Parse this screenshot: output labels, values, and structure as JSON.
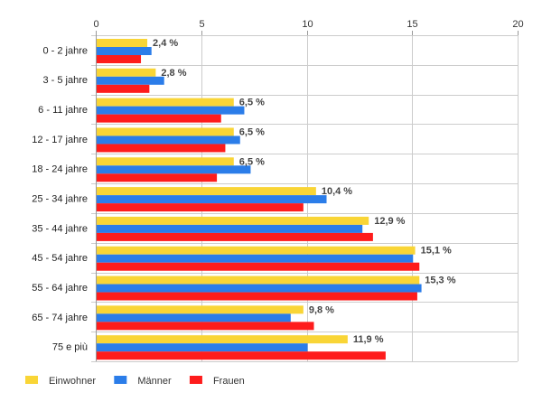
{
  "chart_data": {
    "type": "bar",
    "orientation": "horizontal",
    "title": "",
    "xlabel": "",
    "ylabel": "",
    "xlim": [
      0,
      20
    ],
    "x_ticks": [
      "0",
      "5",
      "10",
      "15",
      "20"
    ],
    "grid": true,
    "legend_position": "bottom-left",
    "categories": [
      "0 - 2 jahre",
      "3 - 5 jahre",
      "6 - 11 jahre",
      "12 - 17 jahre",
      "18 - 24 jahre",
      "25 - 34 jahre",
      "35 - 44 jahre",
      "45 - 54 jahre",
      "55 - 64 jahre",
      "65 - 74 jahre",
      "75 e più"
    ],
    "series": [
      {
        "name": "Einwohner",
        "color": "#f9d536",
        "values": [
          2.4,
          2.8,
          6.5,
          6.5,
          6.5,
          10.4,
          12.9,
          15.1,
          15.3,
          9.8,
          11.9
        ],
        "labels": [
          "2,4 %",
          "2,8 %",
          "6,5 %",
          "6,5 %",
          "6,5 %",
          "10,4 %",
          "12,9 %",
          "15,1 %",
          "15,3 %",
          "9,8 %",
          "11,9 %"
        ]
      },
      {
        "name": "Männer",
        "color": "#2b7de9",
        "values": [
          2.6,
          3.2,
          7.0,
          6.8,
          7.3,
          10.9,
          12.6,
          15.0,
          15.4,
          9.2,
          10.0
        ]
      },
      {
        "name": "Frauen",
        "color": "#fe1c1c",
        "values": [
          2.1,
          2.5,
          5.9,
          6.1,
          5.7,
          9.8,
          13.1,
          15.3,
          15.2,
          10.3,
          13.7
        ]
      }
    ]
  }
}
